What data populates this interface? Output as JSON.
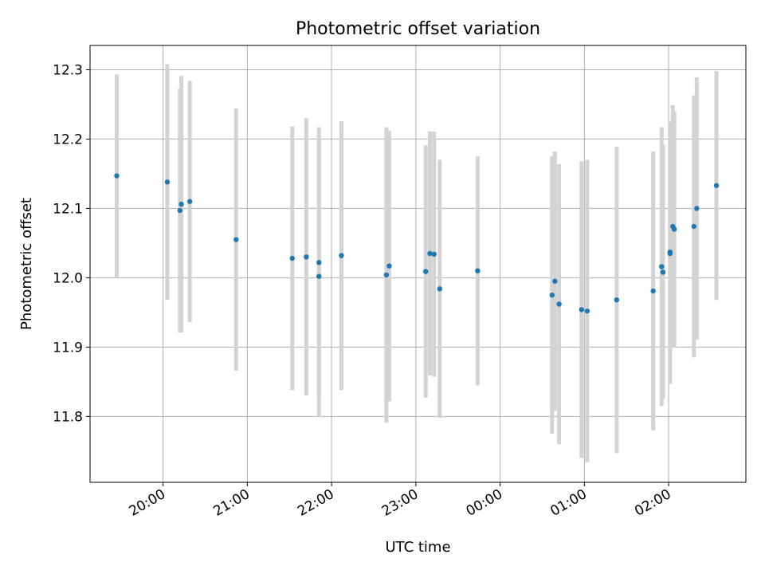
{
  "chart_data": {
    "type": "scatter",
    "title": "Photometric offset variation",
    "xlabel": "UTC time",
    "ylabel": "Photometric offset",
    "xlim": [
      "19:08",
      "26:55"
    ],
    "ylim": [
      11.705,
      12.335
    ],
    "grid": true,
    "x_ticks": [
      {
        "t": "20:00",
        "label": "20:00"
      },
      {
        "t": "21:00",
        "label": "21:00"
      },
      {
        "t": "22:00",
        "label": "22:00"
      },
      {
        "t": "23:00",
        "label": "23:00"
      },
      {
        "t": "24:00",
        "label": "00:00"
      },
      {
        "t": "25:00",
        "label": "01:00"
      },
      {
        "t": "26:00",
        "label": "02:00"
      }
    ],
    "y_ticks": [
      {
        "v": 11.8,
        "label": "11.8"
      },
      {
        "v": 11.9,
        "label": "11.9"
      },
      {
        "v": 12.0,
        "label": "12.0"
      },
      {
        "v": 12.1,
        "label": "12.1"
      },
      {
        "v": 12.2,
        "label": "12.2"
      },
      {
        "v": 12.3,
        "label": "12.3"
      }
    ],
    "series": [
      {
        "marker_color": "#1f77b4",
        "error_color": "#d3d3d3",
        "points": [
          {
            "t": "19:27",
            "y": 12.147,
            "err": 0.146
          },
          {
            "t": "20:03",
            "y": 12.138,
            "err": 0.17
          },
          {
            "t": "20:12",
            "y": 12.097,
            "err": 0.176
          },
          {
            "t": "20:13",
            "y": 12.106,
            "err": 0.185
          },
          {
            "t": "20:19",
            "y": 12.11,
            "err": 0.174
          },
          {
            "t": "20:52",
            "y": 12.055,
            "err": 0.189
          },
          {
            "t": "21:32",
            "y": 12.028,
            "err": 0.19
          },
          {
            "t": "21:42",
            "y": 12.03,
            "err": 0.2
          },
          {
            "t": "21:51",
            "y": 12.022,
            "err": 0.195
          },
          {
            "t": "21:51",
            "y": 12.002,
            "err": 0.203
          },
          {
            "t": "22:07",
            "y": 12.032,
            "err": 0.194
          },
          {
            "t": "22:39",
            "y": 12.004,
            "err": 0.213
          },
          {
            "t": "22:41",
            "y": 12.017,
            "err": 0.195
          },
          {
            "t": "23:07",
            "y": 12.009,
            "err": 0.182
          },
          {
            "t": "23:10",
            "y": 12.035,
            "err": 0.176
          },
          {
            "t": "23:13",
            "y": 12.034,
            "err": 0.177
          },
          {
            "t": "23:17",
            "y": 11.984,
            "err": 0.186
          },
          {
            "t": "23:44",
            "y": 12.01,
            "err": 0.165
          },
          {
            "t": "24:37",
            "y": 11.975,
            "err": 0.2
          },
          {
            "t": "24:39",
            "y": 11.995,
            "err": 0.187
          },
          {
            "t": "24:42",
            "y": 11.962,
            "err": 0.202
          },
          {
            "t": "24:58",
            "y": 11.954,
            "err": 0.214
          },
          {
            "t": "25:02",
            "y": 11.952,
            "err": 0.218
          },
          {
            "t": "25:23",
            "y": 11.968,
            "err": 0.221
          },
          {
            "t": "25:49",
            "y": 11.981,
            "err": 0.201
          },
          {
            "t": "25:55",
            "y": 12.016,
            "err": 0.201
          },
          {
            "t": "25:56",
            "y": 12.008,
            "err": 0.183
          },
          {
            "t": "26:01",
            "y": 12.037,
            "err": 0.188
          },
          {
            "t": "26:01",
            "y": 12.035,
            "err": 0.188
          },
          {
            "t": "26:03",
            "y": 12.074,
            "err": 0.175
          },
          {
            "t": "26:04",
            "y": 12.07,
            "err": 0.17
          },
          {
            "t": "26:18",
            "y": 12.074,
            "err": 0.189
          },
          {
            "t": "26:20",
            "y": 12.1,
            "err": 0.189
          },
          {
            "t": "26:34",
            "y": 12.133,
            "err": 0.165
          }
        ]
      }
    ]
  }
}
